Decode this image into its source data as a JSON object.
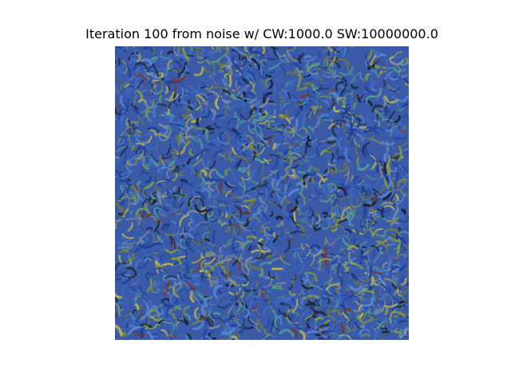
{
  "figure": {
    "title": "Iteration 100 from noise w/ CW:1000.0 SW:10000000.0"
  },
  "image": {
    "description_icon": "stylized-noise-texture",
    "palette": {
      "base": "#3a5aa8",
      "blue_deep": "#1f3f9a",
      "blue_mid": "#3c6ac4",
      "blue_light": "#5a86d2",
      "teal": "#4f9a9a",
      "green": "#7f9a4a",
      "yellow": "#b8b24f",
      "olive": "#6f7a3e",
      "dark": "#1a1f2e",
      "rust": "#7a3a2a",
      "grey": "#7f8a9a"
    }
  }
}
